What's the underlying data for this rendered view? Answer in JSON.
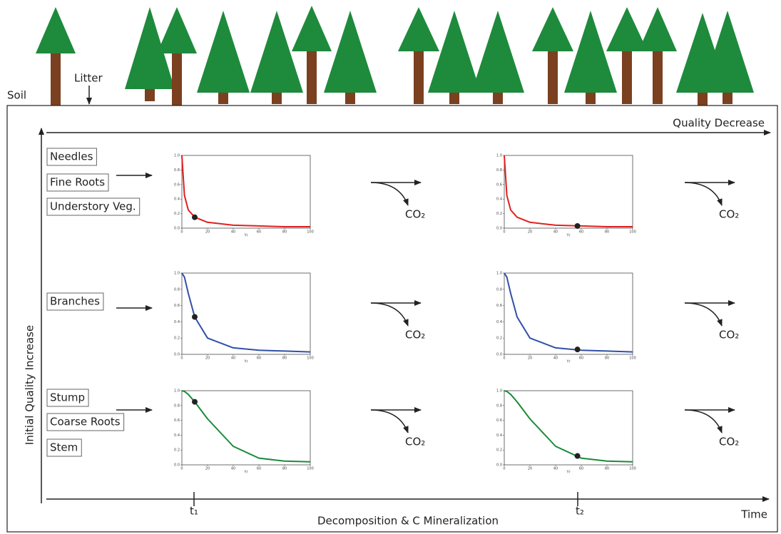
{
  "header": {
    "litter": "Litter",
    "soil": "Soil"
  },
  "axes": {
    "quality_decrease": "Quality Decrease",
    "quality_increase": "Initial Quality Increase",
    "time": "Time",
    "process": "Decomposition & C Mineralization",
    "time_points": [
      "t₁",
      "t₂"
    ]
  },
  "rows": [
    {
      "labels": [
        "Needles",
        "Fine Roots",
        "Understory Veg."
      ],
      "plots": [
        {
          "type": "line",
          "color": "#e02020",
          "x": [
            0,
            2,
            5,
            10,
            20,
            40,
            60,
            80,
            100
          ],
          "y": [
            1.0,
            0.45,
            0.25,
            0.15,
            0.08,
            0.04,
            0.03,
            0.02,
            0.02
          ],
          "marker": {
            "x": 10,
            "y": 0.15
          },
          "xlim": [
            0,
            100
          ],
          "ylim": [
            0,
            1
          ],
          "xticks": [
            0,
            20,
            40,
            60,
            80,
            100
          ],
          "yticks": [
            {
              "value": 0,
              "label": "0.0"
            },
            {
              "value": 0.2,
              "label": "0.2"
            },
            {
              "value": 0.4,
              "label": "0.4"
            },
            {
              "value": 0.6,
              "label": "0.6"
            },
            {
              "value": 0.8,
              "label": "0.8"
            },
            {
              "value": 1,
              "label": "1.0"
            }
          ],
          "xlabel": "Yr",
          "product": "CO₂"
        },
        {
          "type": "line",
          "color": "#e02020",
          "x": [
            0,
            2,
            5,
            10,
            20,
            40,
            60,
            80,
            100
          ],
          "y": [
            1.0,
            0.45,
            0.25,
            0.15,
            0.08,
            0.04,
            0.03,
            0.02,
            0.02
          ],
          "marker": {
            "x": 57,
            "y": 0.03
          },
          "xlim": [
            0,
            100
          ],
          "ylim": [
            0,
            1
          ],
          "xticks": [
            0,
            20,
            40,
            60,
            80,
            100
          ],
          "yticks": [
            {
              "value": 0,
              "label": "0.0"
            },
            {
              "value": 0.2,
              "label": "0.2"
            },
            {
              "value": 0.4,
              "label": "0.4"
            },
            {
              "value": 0.6,
              "label": "0.6"
            },
            {
              "value": 0.8,
              "label": "0.8"
            },
            {
              "value": 1,
              "label": "1.0"
            }
          ],
          "xlabel": "Yr",
          "product": "CO₂"
        }
      ]
    },
    {
      "labels": [
        "Branches"
      ],
      "plots": [
        {
          "type": "line",
          "color": "#3050a8",
          "x": [
            0,
            2,
            5,
            10,
            20,
            40,
            60,
            80,
            100
          ],
          "y": [
            1.0,
            0.95,
            0.75,
            0.46,
            0.2,
            0.08,
            0.05,
            0.04,
            0.03
          ],
          "marker": {
            "x": 10,
            "y": 0.46
          },
          "xlim": [
            0,
            100
          ],
          "ylim": [
            0,
            1
          ],
          "xticks": [
            0,
            20,
            40,
            60,
            80,
            100
          ],
          "yticks": [
            {
              "value": 0,
              "label": "0.0"
            },
            {
              "value": 0.2,
              "label": "0.2"
            },
            {
              "value": 0.4,
              "label": "0.4"
            },
            {
              "value": 0.6,
              "label": "0.6"
            },
            {
              "value": 0.8,
              "label": "0.8"
            },
            {
              "value": 1,
              "label": "1.0"
            }
          ],
          "xlabel": "Yr",
          "product": "CO₂"
        },
        {
          "type": "line",
          "color": "#3050a8",
          "x": [
            0,
            2,
            5,
            10,
            20,
            40,
            60,
            80,
            100
          ],
          "y": [
            1.0,
            0.95,
            0.75,
            0.46,
            0.2,
            0.08,
            0.05,
            0.04,
            0.03
          ],
          "marker": {
            "x": 57,
            "y": 0.06
          },
          "xlim": [
            0,
            100
          ],
          "ylim": [
            0,
            1
          ],
          "xticks": [
            0,
            20,
            40,
            60,
            80,
            100
          ],
          "yticks": [
            {
              "value": 0,
              "label": "0.0"
            },
            {
              "value": 0.2,
              "label": "0.2"
            },
            {
              "value": 0.4,
              "label": "0.4"
            },
            {
              "value": 0.6,
              "label": "0.6"
            },
            {
              "value": 0.8,
              "label": "0.8"
            },
            {
              "value": 1,
              "label": "1.0"
            }
          ],
          "xlabel": "Yr",
          "product": "CO₂"
        }
      ]
    },
    {
      "labels": [
        "Stump",
        "Coarse Roots",
        "Stem"
      ],
      "plots": [
        {
          "type": "line",
          "color": "#1a8a3a",
          "x": [
            0,
            2,
            5,
            10,
            20,
            40,
            60,
            80,
            100
          ],
          "y": [
            1.0,
            0.99,
            0.95,
            0.85,
            0.62,
            0.25,
            0.09,
            0.05,
            0.04
          ],
          "marker": {
            "x": 10,
            "y": 0.85
          },
          "xlim": [
            0,
            100
          ],
          "ylim": [
            0,
            1
          ],
          "xticks": [
            0,
            20,
            40,
            60,
            80,
            100
          ],
          "yticks": [
            {
              "value": 0,
              "label": "0.0"
            },
            {
              "value": 0.2,
              "label": "0.2"
            },
            {
              "value": 0.4,
              "label": "0.4"
            },
            {
              "value": 0.6,
              "label": "0.6"
            },
            {
              "value": 0.8,
              "label": "0.8"
            },
            {
              "value": 1,
              "label": "1.0"
            }
          ],
          "xlabel": "Yr",
          "product": "CO₂"
        },
        {
          "type": "line",
          "color": "#1a8a3a",
          "x": [
            0,
            2,
            5,
            10,
            20,
            40,
            60,
            80,
            100
          ],
          "y": [
            1.0,
            0.99,
            0.95,
            0.85,
            0.62,
            0.25,
            0.09,
            0.05,
            0.04
          ],
          "marker": {
            "x": 57,
            "y": 0.12
          },
          "xlim": [
            0,
            100
          ],
          "ylim": [
            0,
            1
          ],
          "xticks": [
            0,
            20,
            40,
            60,
            80,
            100
          ],
          "yticks": [
            {
              "value": 0,
              "label": "0.0"
            },
            {
              "value": 0.2,
              "label": "0.2"
            },
            {
              "value": 0.4,
              "label": "0.4"
            },
            {
              "value": 0.6,
              "label": "0.6"
            },
            {
              "value": 0.8,
              "label": "0.8"
            },
            {
              "value": 1,
              "label": "1.0"
            }
          ],
          "xlabel": "Yr",
          "product": "CO₂"
        }
      ]
    }
  ]
}
